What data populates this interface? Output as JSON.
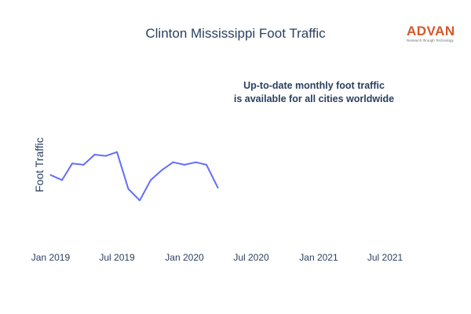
{
  "header": {
    "title": "Clinton Mississippi Foot Traffic"
  },
  "logo": {
    "name": "ADVAN",
    "tagline": "Research through Technology",
    "color": "#d4582a"
  },
  "annotation": {
    "line1": "Up-to-date monthly foot traffic",
    "line2": "is available for all cities worldwide"
  },
  "chart_data": {
    "type": "line",
    "title": "Clinton Mississippi Foot Traffic",
    "xlabel": "",
    "ylabel": "Foot Traffic",
    "xlim": [
      "2018-12-01",
      "2021-11-01"
    ],
    "ylim": [
      0,
      100
    ],
    "grid": false,
    "line_color": "#636efa",
    "x_ticks": [
      {
        "date": "2019-01-01",
        "label": "Jan 2019"
      },
      {
        "date": "2019-07-01",
        "label": "Jul 2019"
      },
      {
        "date": "2020-01-01",
        "label": "Jan 2020"
      },
      {
        "date": "2020-07-01",
        "label": "Jul 2020"
      },
      {
        "date": "2021-01-01",
        "label": "Jan 2021"
      },
      {
        "date": "2021-07-01",
        "label": "Jul 2021"
      }
    ],
    "series": [
      {
        "x": [
          "2019-01-01",
          "2019-02-01",
          "2019-03-01",
          "2019-04-01",
          "2019-05-01",
          "2019-06-01",
          "2019-07-01",
          "2019-08-01",
          "2019-09-01",
          "2019-10-01",
          "2019-11-01",
          "2019-12-01",
          "2020-01-01",
          "2020-02-01",
          "2020-03-01",
          "2020-04-01"
        ],
        "y": [
          55,
          51,
          64,
          63,
          71,
          70,
          73,
          44,
          35,
          51,
          59,
          65,
          63,
          65,
          63,
          45
        ]
      }
    ]
  }
}
